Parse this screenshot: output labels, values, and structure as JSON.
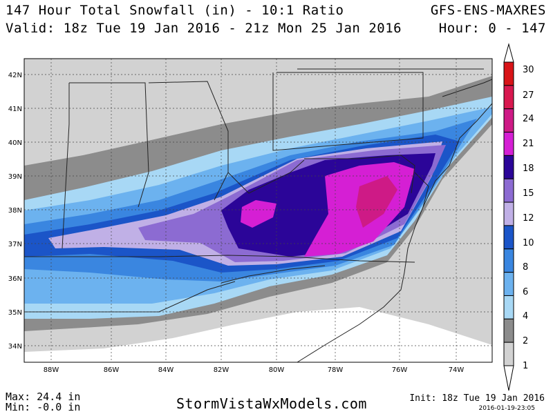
{
  "header": {
    "title": "147 Hour Total Snowfall (in) - 10:1 Ratio",
    "valid": "Valid: 18z Tue 19 Jan 2016 - 21z Mon 25 Jan 2016",
    "model": "GFS-ENS-MAXRES",
    "hours": "Hour: 0 - 147"
  },
  "map": {
    "lat_labels": [
      "42N",
      "41N",
      "40N",
      "39N",
      "38N",
      "37N",
      "36N",
      "35N",
      "34N"
    ],
    "lon_labels": [
      "88W",
      "86W",
      "84W",
      "82W",
      "80W",
      "78W",
      "76W",
      "74W"
    ]
  },
  "colorbar": {
    "levels": [
      "30",
      "27",
      "24",
      "21",
      "18",
      "15",
      "12",
      "10",
      "8",
      "6",
      "4",
      "2",
      "1"
    ],
    "colors": [
      "#d81418",
      "#d8184f",
      "#ce1a86",
      "#d51fd4",
      "#2b0598",
      "#8c6bd2",
      "#c0b0e6",
      "#1b55c8",
      "#3a86e0",
      "#6cb2ef",
      "#a8d8f5",
      "#8c8c8c",
      "#d2d2d2"
    ]
  },
  "footer": {
    "max": "Max: 24.4 in",
    "min": "Min: -0.0 in",
    "site": "StormVistaWxModels.com",
    "init": "Init: 18z Tue 19 Jan 2016",
    "stamp": "2016-01-19-23:05"
  }
}
